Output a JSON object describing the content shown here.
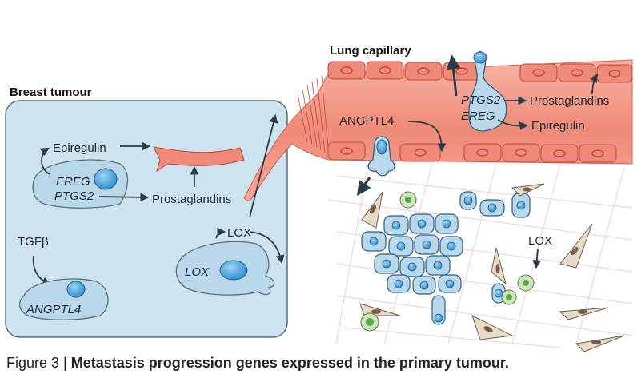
{
  "headings": {
    "breast_tumour": "Breast tumour",
    "lung_capillary": "Lung capillary"
  },
  "labels": {
    "epiregulin_left": "Epiregulin",
    "ereg_left": "EREG",
    "ptgs2_left": "PTGS2",
    "prostaglandins_left": "Prostaglandins",
    "tgfb": "TGFβ",
    "angptl4_gene": "ANGPTL4",
    "lox_protein_left": "LOX",
    "lox_gene": "LOX",
    "angptl4_protein": "ANGPTL4",
    "ptgs2_right": "PTGS2",
    "ereg_right": "EREG",
    "prostaglandins_right": "Prostaglandins",
    "epiregulin_right": "Epiregulin",
    "lox_right": "LOX"
  },
  "caption": {
    "figure": "Figure 3 | ",
    "title": "Metastasis progression genes expressed in the primary tumour."
  },
  "colors": {
    "tumour_box": "#cde3ef",
    "tumour_border": "#5e6f7a",
    "cell_fill": "#b9d8ea",
    "nucleus": "#3d9ad6",
    "vessel": "#f08a78",
    "vessel_dark": "#d95a4a",
    "stroma_cell": "#e6dac8",
    "macrophage": "#cfe6bd",
    "arrow": "#2a3b47"
  }
}
